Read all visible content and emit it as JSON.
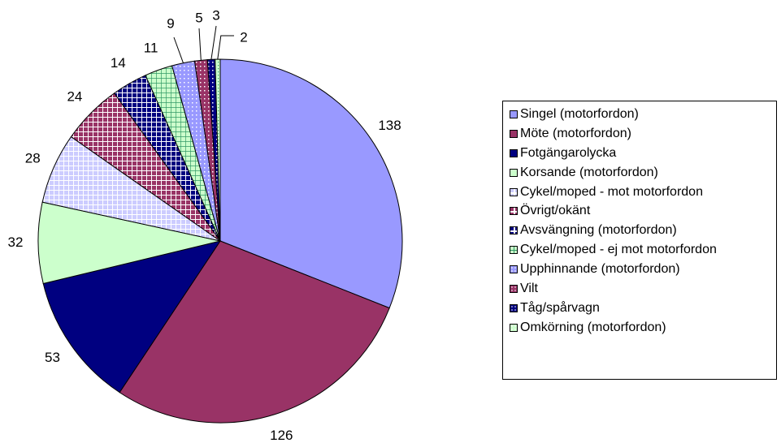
{
  "chart_data": {
    "type": "pie",
    "categories": [
      "Singel (motorfordon)",
      "Möte (motorfordon)",
      "Fotgängarolycka",
      "Korsande (motorfordon)",
      "Cykel/moped - mot motorfordon",
      "Övrigt/okänt",
      "Avsvängning (motorfordon)",
      "Cykel/moped - ej mot motorfordon",
      "Upphinnande (motorfordon)",
      "Vilt",
      "Tåg/spårvagn",
      "Omkörning (motorfordon)"
    ],
    "values": [
      138,
      126,
      53,
      32,
      28,
      24,
      14,
      11,
      9,
      5,
      3,
      2
    ],
    "colors": [
      "#9999ff",
      "#993366",
      "#000080",
      "#ccffcc",
      "#ccccff",
      "#993366",
      "#000080",
      "#ccffcc",
      "#9999ff",
      "#993366",
      "#000080",
      "#ccffcc"
    ],
    "patterns": [
      "solid",
      "solid",
      "solid",
      "solid",
      "grid-white",
      "grid-white",
      "grid-white",
      "grid-dark",
      "dots",
      "dots",
      "dots",
      "dotgrid"
    ],
    "start_angle": "12 o'clock, clockwise",
    "legend_position": "right"
  },
  "legend": [
    {
      "label": "Singel (motorfordon)"
    },
    {
      "label": "Möte (motorfordon)"
    },
    {
      "label": "Fotgängarolycka"
    },
    {
      "label": "Korsande (motorfordon)"
    },
    {
      "label": "Cykel/moped - mot motorfordon"
    },
    {
      "label": "Övrigt/okänt"
    },
    {
      "label": "Avsvängning (motorfordon)"
    },
    {
      "label": "Cykel/moped - ej mot motorfordon"
    },
    {
      "label": "Upphinnande (motorfordon)"
    },
    {
      "label": "Vilt"
    },
    {
      "label": "Tåg/spårvagn"
    },
    {
      "label": "Omkörning (motorfordon)"
    }
  ]
}
